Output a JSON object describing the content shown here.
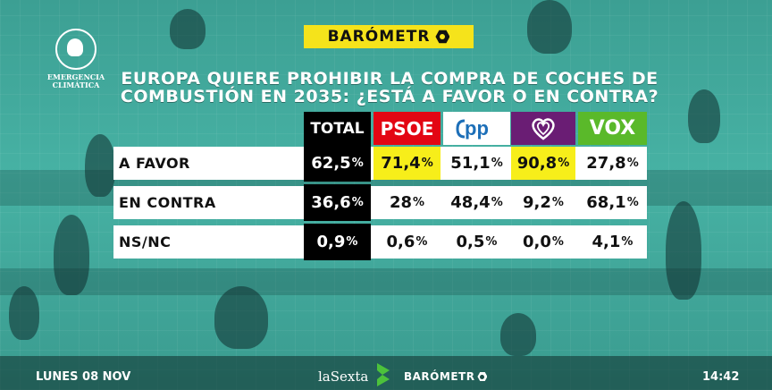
{
  "brand": {
    "logo_text": "EMERGENCIA CLIMÁTICA",
    "barometro": "BARÓMETR"
  },
  "question": "EUROPA QUIERE PROHIBIR LA COMPRA DE COCHES DE COMBUSTIÓN EN 2035: ¿ESTÁ A FAVOR O EN CONTRA?",
  "columns": [
    {
      "label": "TOTAL",
      "bg": "#000000",
      "fg": "#ffffff"
    },
    {
      "label": "PSOE",
      "bg": "#e30613",
      "fg": "#ffffff"
    },
    {
      "label": "pp",
      "bg": "#ffffff",
      "fg": "#1d6fb8"
    },
    {
      "label": "",
      "bg": "#6a1d74",
      "fg": "#ffffff"
    },
    {
      "label": "VOX",
      "bg": "#5ab92a",
      "fg": "#ffffff"
    }
  ],
  "rows": [
    {
      "label": "A FAVOR",
      "values": [
        "62,5",
        "71,4",
        "51,1",
        "90,8",
        "27,8"
      ],
      "highlight": [
        false,
        true,
        false,
        true,
        false
      ]
    },
    {
      "label": "EN CONTRA",
      "values": [
        "36,6",
        "28",
        "48,4",
        "9,2",
        "68,1"
      ],
      "highlight": [
        false,
        false,
        false,
        false,
        false
      ]
    },
    {
      "label": "NS/NC",
      "values": [
        "0,9",
        "0,6",
        "0,5",
        "0,0",
        "4,1"
      ],
      "highlight": [
        false,
        false,
        false,
        false,
        false
      ]
    }
  ],
  "highlight_color": "#f7ee1a",
  "chart_data": {
    "type": "table",
    "title": "EUROPA QUIERE PROHIBIR LA COMPRA DE COCHES DE COMBUSTIÓN EN 2035: ¿ESTÁ A FAVOR O EN CONTRA?",
    "columns": [
      "TOTAL",
      "PSOE",
      "PP",
      "Podemos",
      "VOX"
    ],
    "rows": [
      "A FAVOR",
      "EN CONTRA",
      "NS/NC"
    ],
    "values": [
      [
        62.5,
        71.4,
        51.1,
        90.8,
        27.8
      ],
      [
        36.6,
        28,
        48.4,
        9.2,
        68.1
      ],
      [
        0.9,
        0.6,
        0.5,
        0.0,
        4.1
      ]
    ],
    "unit": "%"
  },
  "footer": {
    "date": "LUNES 08 NOV",
    "channel": "laSexta",
    "barometro": "BARÓMETR",
    "time": "14:42"
  }
}
